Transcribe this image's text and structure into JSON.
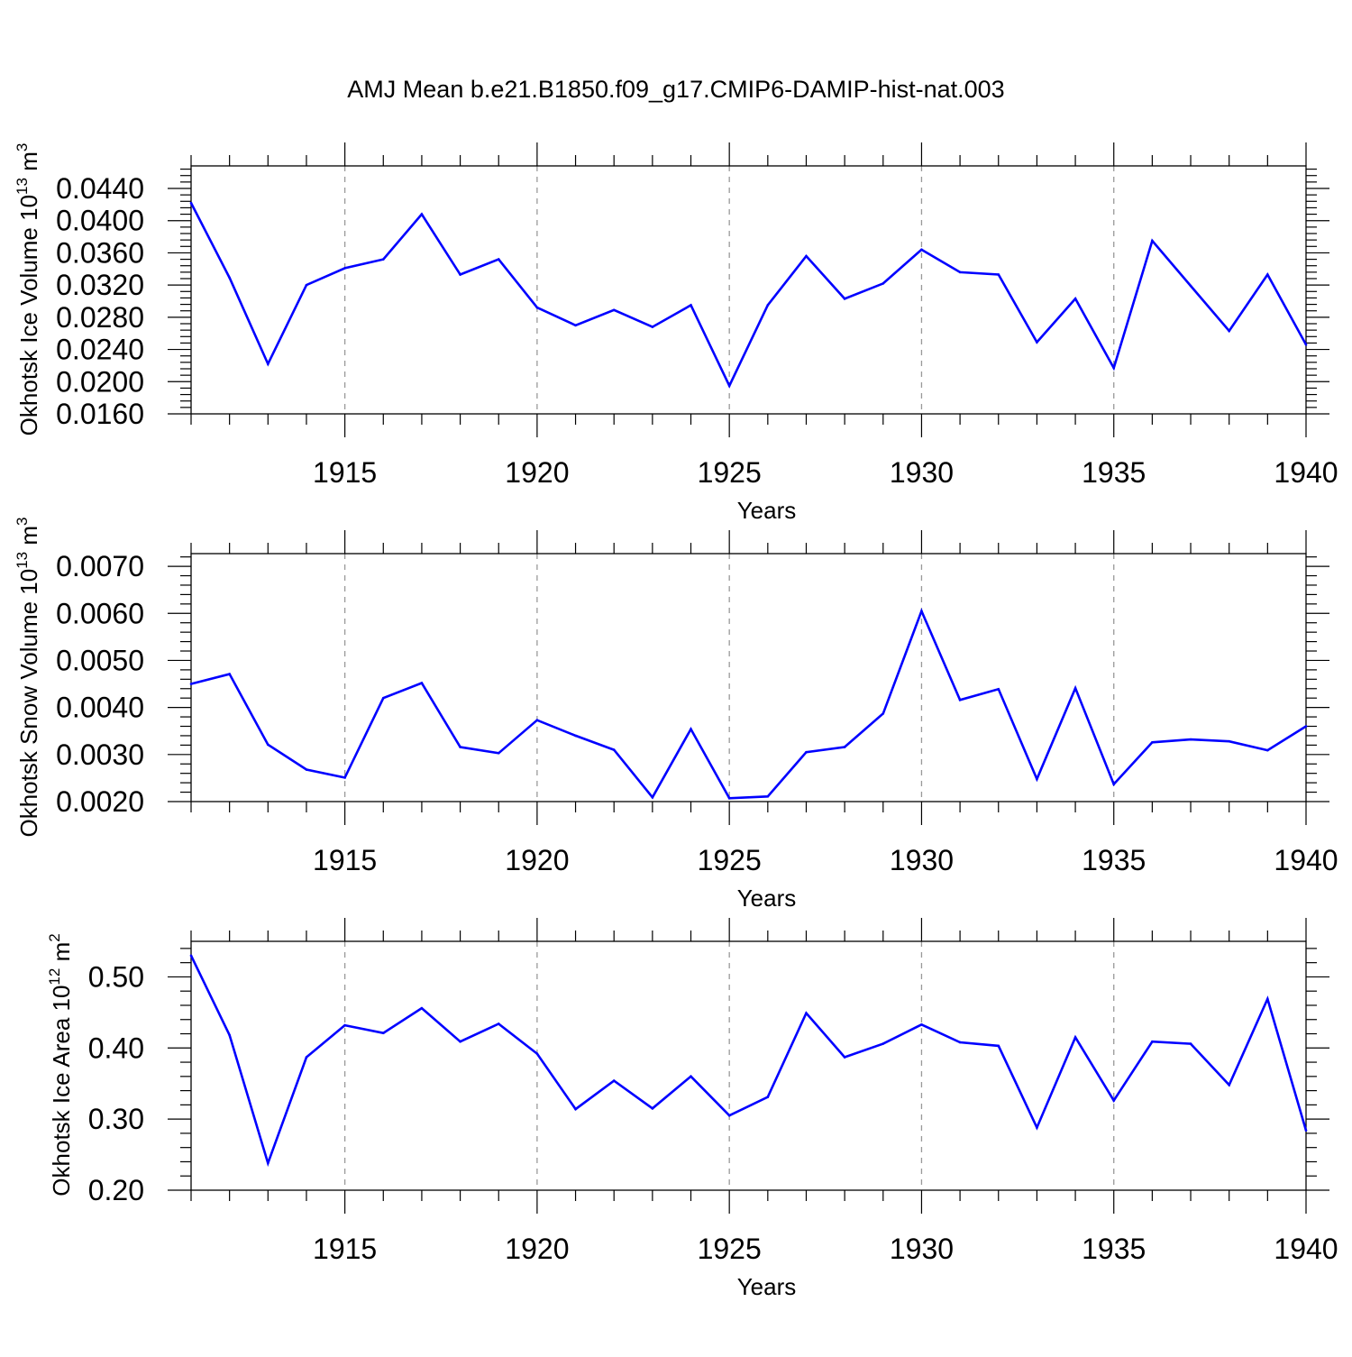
{
  "title": "AMJ Mean b.e21.B1850.f09_g17.CMIP6-DAMIP-hist-nat.003",
  "colors": {
    "line": "#0000ff",
    "axis": "#000000",
    "grid": "#999999"
  },
  "chart_data": [
    {
      "type": "line",
      "xlabel": "Years",
      "ylabel": {
        "text": "Okhotsk Ice Volume 10",
        "exp": "13",
        "unit": " m",
        "unit_exp": "3"
      },
      "xlim": [
        1911,
        1940
      ],
      "ylim": [
        0.016,
        0.0468
      ],
      "x_ticks": [
        1915,
        1920,
        1925,
        1930,
        1935,
        1940
      ],
      "y_ticks": [
        0.016,
        0.02,
        0.024,
        0.028,
        0.032,
        0.036,
        0.04,
        0.044
      ],
      "y_tick_labels": [
        "0.0160",
        "0.0200",
        "0.0240",
        "0.0280",
        "0.0320",
        "0.0360",
        "0.0400",
        "0.0440"
      ],
      "x": [
        1911,
        1912,
        1913,
        1914,
        1915,
        1916,
        1917,
        1918,
        1919,
        1920,
        1921,
        1922,
        1923,
        1924,
        1925,
        1926,
        1927,
        1928,
        1929,
        1930,
        1931,
        1932,
        1933,
        1934,
        1935,
        1936,
        1937,
        1938,
        1939,
        1940
      ],
      "y": [
        0.0422,
        0.0329,
        0.0222,
        0.032,
        0.0341,
        0.0352,
        0.0408,
        0.0333,
        0.0352,
        0.0292,
        0.027,
        0.0289,
        0.0268,
        0.0295,
        0.0195,
        0.0295,
        0.0356,
        0.0303,
        0.0322,
        0.0364,
        0.0336,
        0.0333,
        0.0249,
        0.0303,
        0.0217,
        0.0375,
        0.0319,
        0.0263,
        0.0333,
        0.0246
      ]
    },
    {
      "type": "line",
      "xlabel": "Years",
      "ylabel": {
        "text": "Okhotsk Snow Volume 10",
        "exp": "13",
        "unit": " m",
        "unit_exp": "3"
      },
      "xlim": [
        1911,
        1940
      ],
      "ylim": [
        0.002,
        0.00727
      ],
      "x_ticks": [
        1915,
        1920,
        1925,
        1930,
        1935,
        1940
      ],
      "y_ticks": [
        0.002,
        0.003,
        0.004,
        0.005,
        0.006,
        0.007
      ],
      "y_tick_labels": [
        "0.0020",
        "0.0030",
        "0.0040",
        "0.0050",
        "0.0060",
        "0.0070"
      ],
      "x": [
        1911,
        1912,
        1913,
        1914,
        1915,
        1916,
        1917,
        1918,
        1919,
        1920,
        1921,
        1922,
        1923,
        1924,
        1925,
        1926,
        1927,
        1928,
        1929,
        1930,
        1931,
        1932,
        1933,
        1934,
        1935,
        1936,
        1937,
        1938,
        1939,
        1940
      ],
      "y": [
        0.0045,
        0.00471,
        0.00321,
        0.00268,
        0.00251,
        0.0042,
        0.00452,
        0.00316,
        0.00303,
        0.00373,
        0.0034,
        0.0031,
        0.00209,
        0.00354,
        0.00207,
        0.00211,
        0.00305,
        0.00316,
        0.00387,
        0.00605,
        0.00416,
        0.00439,
        0.00248,
        0.00441,
        0.00237,
        0.00326,
        0.00332,
        0.00328,
        0.00309,
        0.0036
      ]
    },
    {
      "type": "line",
      "xlabel": "Years",
      "ylabel": {
        "text": "Okhotsk Ice Area 10",
        "exp": "12",
        "unit": " m",
        "unit_exp": "2"
      },
      "xlim": [
        1911,
        1940
      ],
      "ylim": [
        0.2,
        0.55
      ],
      "x_ticks": [
        1915,
        1920,
        1925,
        1930,
        1935,
        1940
      ],
      "y_ticks": [
        0.2,
        0.3,
        0.4,
        0.5
      ],
      "y_tick_labels": [
        "0.20",
        "0.30",
        "0.40",
        "0.50"
      ],
      "x": [
        1911,
        1912,
        1913,
        1914,
        1915,
        1916,
        1917,
        1918,
        1919,
        1920,
        1921,
        1922,
        1923,
        1924,
        1925,
        1926,
        1927,
        1928,
        1929,
        1930,
        1931,
        1932,
        1933,
        1934,
        1935,
        1936,
        1937,
        1938,
        1939,
        1940
      ],
      "y": [
        0.53,
        0.418,
        0.238,
        0.387,
        0.432,
        0.421,
        0.456,
        0.409,
        0.434,
        0.392,
        0.314,
        0.354,
        0.315,
        0.36,
        0.305,
        0.331,
        0.449,
        0.387,
        0.406,
        0.433,
        0.408,
        0.403,
        0.288,
        0.415,
        0.326,
        0.409,
        0.406,
        0.348,
        0.469,
        0.284
      ]
    }
  ]
}
